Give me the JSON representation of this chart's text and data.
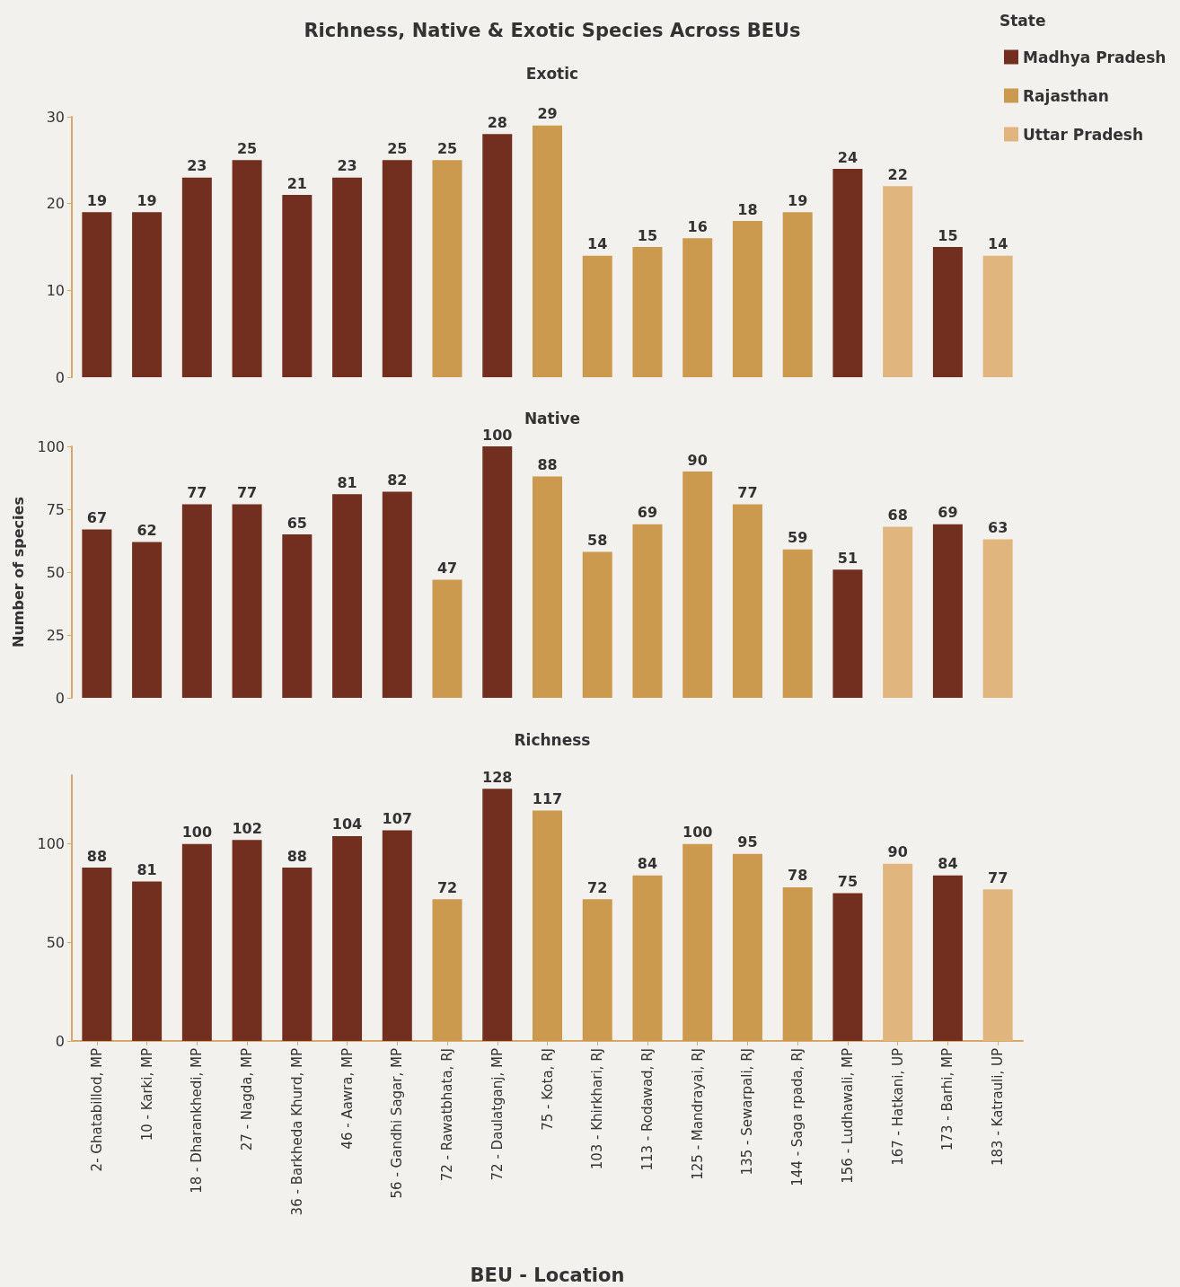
{
  "chart_data": [
    {
      "type": "bar",
      "title": "Richness, Native & Exotic Species Across BEUs",
      "subtitle": "Exotic",
      "data_labels": true,
      "grid": false,
      "tick_labels": "y",
      "ylim": [
        0,
        30
      ],
      "yticks": [
        0,
        10,
        20,
        30
      ],
      "categories": [
        null,
        null,
        null,
        null,
        null,
        null,
        null,
        null,
        null,
        null,
        null,
        null,
        null,
        null,
        null,
        null,
        null,
        null,
        null
      ],
      "series": [
        {
          "values": [
            19,
            19,
            23,
            25,
            21,
            23,
            25,
            25,
            28,
            29,
            14,
            15,
            16,
            18,
            19,
            24,
            22,
            15,
            14
          ],
          "colors": [
            "#722e1f",
            "#722e1f",
            "#722e1f",
            "#722e1f",
            "#722e1f",
            "#722e1f",
            "#722e1f",
            "#cc9a4f",
            "#722e1f",
            "#cc9a4f",
            "#cc9a4f",
            "#cc9a4f",
            "#cc9a4f",
            "#cc9a4f",
            "#cc9a4f",
            "#722e1f",
            "#e0b57e",
            "#722e1f",
            "#e0b57e"
          ]
        }
      ]
    },
    {
      "type": "bar",
      "subtitle": "Native",
      "ylabel": "Number of species",
      "data_labels": true,
      "grid": false,
      "tick_labels": "y",
      "ylim": [
        0,
        100
      ],
      "yticks": [
        0,
        25,
        50,
        75,
        100
      ],
      "categories": [
        null,
        null,
        null,
        null,
        null,
        null,
        null,
        null,
        null,
        null,
        null,
        null,
        null,
        null,
        null,
        null,
        null,
        null,
        null
      ],
      "series": [
        {
          "values": [
            67,
            62,
            77,
            77,
            65,
            81,
            82,
            47,
            100,
            88,
            58,
            69,
            90,
            77,
            59,
            51,
            68,
            69,
            63
          ],
          "colors": [
            "#722e1f",
            "#722e1f",
            "#722e1f",
            "#722e1f",
            "#722e1f",
            "#722e1f",
            "#722e1f",
            "#cc9a4f",
            "#722e1f",
            "#cc9a4f",
            "#cc9a4f",
            "#cc9a4f",
            "#cc9a4f",
            "#cc9a4f",
            "#cc9a4f",
            "#722e1f",
            "#e0b57e",
            "#722e1f",
            "#e0b57e"
          ]
        }
      ]
    },
    {
      "type": "bar",
      "subtitle": "Richness",
      "xlabel": "BEU - Location",
      "legend": "top right",
      "legend_title": "State",
      "data_labels": true,
      "grid": false,
      "ylim": [
        0,
        135
      ],
      "yticks": [
        0,
        50,
        100
      ],
      "categories": [
        "2- Ghatabillod, MP",
        "10 - Karki, MP",
        "18 - Dharankhedi, MP",
        "27 - Nagda, MP",
        "36 - Barkheda Khurd, MP",
        "46 - Aawra, MP",
        "56 - Gandhi Sagar, MP",
        "72 - Rawatbhata, RJ",
        "72 - Daulatganj, MP",
        "75 - Kota, RJ",
        "103 - Khirkhari, RJ",
        "113 - Rodawad, RJ",
        "125 - Mandrayai, RJ",
        "135 - Sewarpali, RJ",
        "144 - Saga rpada, RJ",
        "156 - Ludhawali, MP",
        "167 - Hatkani, UP",
        "173 - Barhi, MP",
        "183 - Katrauli, UP"
      ],
      "series": [
        {
          "name": "Madhya Pradesh",
          "color": "#722e1f",
          "values": [
            88,
            81,
            100,
            102,
            88,
            104,
            107,
            null,
            128,
            null,
            null,
            null,
            null,
            null,
            null,
            75,
            null,
            84,
            null
          ]
        },
        {
          "name": "Rajasthan",
          "color": "#cc9a4f",
          "values": [
            null,
            null,
            null,
            null,
            null,
            null,
            null,
            72,
            null,
            117,
            72,
            84,
            100,
            95,
            78,
            null,
            null,
            null,
            null
          ]
        },
        {
          "name": "Uttar Pradesh",
          "color": "#e0b57e",
          "values": [
            null,
            null,
            null,
            null,
            null,
            null,
            null,
            null,
            null,
            null,
            null,
            null,
            null,
            null,
            null,
            null,
            90,
            null,
            77
          ]
        }
      ]
    }
  ]
}
